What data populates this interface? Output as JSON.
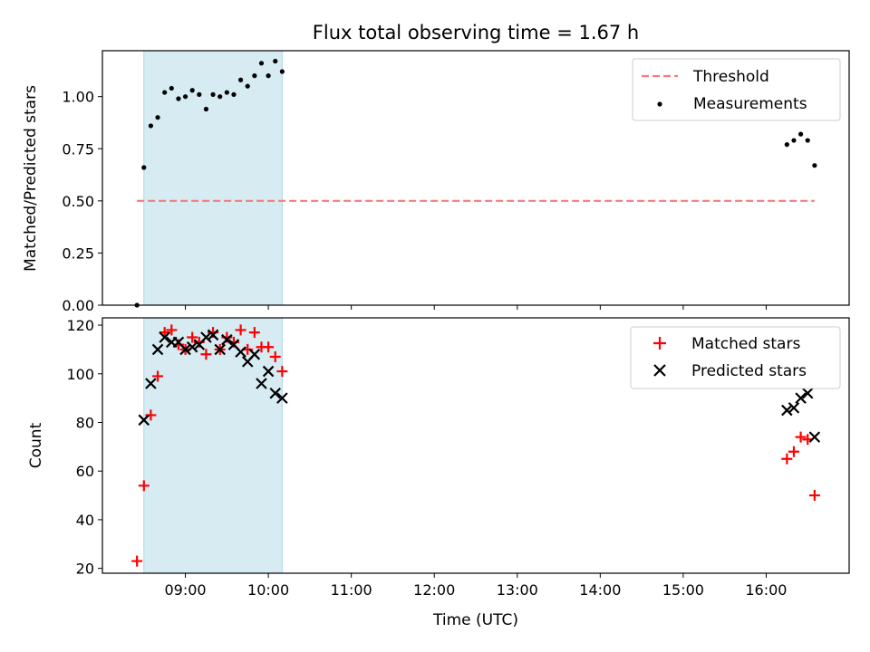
{
  "chart_data": [
    {
      "type": "scatter",
      "title": "Flux total observing time = 1.67 h",
      "xlabel": "",
      "ylabel": "Matched/Predicted stars",
      "xlim": [
        "08:00",
        "17:00"
      ],
      "ylim": [
        0,
        1.22
      ],
      "yticks": [
        "0.00",
        "0.25",
        "0.50",
        "0.75",
        "1.00"
      ],
      "shaded_span": [
        "08:30",
        "10:10"
      ],
      "legend_position": "top-right",
      "threshold": {
        "name": "Threshold",
        "value": 0.5,
        "x": [
          "08:25",
          "16:35"
        ],
        "color": "#f47c7c"
      },
      "series": [
        {
          "name": "Measurements",
          "color": "#000000",
          "points": [
            [
              "08:25",
              0.0
            ],
            [
              "08:30",
              0.66
            ],
            [
              "08:35",
              0.86
            ],
            [
              "08:40",
              0.9
            ],
            [
              "08:45",
              1.02
            ],
            [
              "08:50",
              1.04
            ],
            [
              "08:55",
              0.99
            ],
            [
              "09:00",
              1.0
            ],
            [
              "09:05",
              1.03
            ],
            [
              "09:10",
              1.01
            ],
            [
              "09:15",
              0.94
            ],
            [
              "09:20",
              1.01
            ],
            [
              "09:25",
              1.0
            ],
            [
              "09:30",
              1.02
            ],
            [
              "09:35",
              1.01
            ],
            [
              "09:40",
              1.08
            ],
            [
              "09:45",
              1.05
            ],
            [
              "09:50",
              1.1
            ],
            [
              "09:55",
              1.16
            ],
            [
              "10:00",
              1.1
            ],
            [
              "10:05",
              1.17
            ],
            [
              "10:10",
              1.12
            ],
            [
              "16:15",
              0.77
            ],
            [
              "16:20",
              0.79
            ],
            [
              "16:25",
              0.82
            ],
            [
              "16:30",
              0.79
            ],
            [
              "16:35",
              0.67
            ]
          ]
        }
      ]
    },
    {
      "type": "scatter",
      "xlabel": "Time (UTC)",
      "ylabel": "Count",
      "xlim": [
        "08:00",
        "17:00"
      ],
      "ylim": [
        18,
        123
      ],
      "yticks": [
        "20",
        "40",
        "60",
        "80",
        "100",
        "120"
      ],
      "xticks": [
        "09:00",
        "10:00",
        "11:00",
        "12:00",
        "13:00",
        "14:00",
        "15:00",
        "16:00"
      ],
      "shaded_span": [
        "08:30",
        "10:10"
      ],
      "legend_position": "top-right",
      "series": [
        {
          "name": "Matched stars",
          "marker": "plus",
          "color": "#ff0000",
          "points": [
            [
              "08:25",
              23
            ],
            [
              "08:30",
              54
            ],
            [
              "08:35",
              83
            ],
            [
              "08:40",
              99
            ],
            [
              "08:45",
              117
            ],
            [
              "08:50",
              118
            ],
            [
              "08:55",
              112
            ],
            [
              "09:00",
              110
            ],
            [
              "09:05",
              115
            ],
            [
              "09:10",
              113
            ],
            [
              "09:15",
              108
            ],
            [
              "09:20",
              117
            ],
            [
              "09:25",
              110
            ],
            [
              "09:30",
              115
            ],
            [
              "09:35",
              113
            ],
            [
              "09:40",
              118
            ],
            [
              "09:45",
              110
            ],
            [
              "09:50",
              117
            ],
            [
              "09:55",
              111
            ],
            [
              "10:00",
              111
            ],
            [
              "10:05",
              107
            ],
            [
              "10:10",
              101
            ],
            [
              "16:15",
              65
            ],
            [
              "16:20",
              68
            ],
            [
              "16:25",
              74
            ],
            [
              "16:30",
              73
            ],
            [
              "16:35",
              50
            ]
          ]
        },
        {
          "name": "Predicted stars",
          "marker": "x",
          "color": "#000000",
          "points": [
            [
              "08:30",
              81
            ],
            [
              "08:35",
              96
            ],
            [
              "08:40",
              110
            ],
            [
              "08:45",
              115
            ],
            [
              "08:50",
              113
            ],
            [
              "08:55",
              113
            ],
            [
              "09:00",
              110
            ],
            [
              "09:05",
              111
            ],
            [
              "09:10",
              112
            ],
            [
              "09:15",
              115
            ],
            [
              "09:20",
              116
            ],
            [
              "09:25",
              110
            ],
            [
              "09:30",
              114
            ],
            [
              "09:35",
              112
            ],
            [
              "09:40",
              109
            ],
            [
              "09:45",
              105
            ],
            [
              "09:50",
              108
            ],
            [
              "09:55",
              96
            ],
            [
              "10:00",
              101
            ],
            [
              "10:05",
              92
            ],
            [
              "10:10",
              90
            ],
            [
              "16:15",
              85
            ],
            [
              "16:20",
              86
            ],
            [
              "16:25",
              90
            ],
            [
              "16:30",
              92
            ],
            [
              "16:35",
              74
            ]
          ]
        }
      ]
    }
  ]
}
